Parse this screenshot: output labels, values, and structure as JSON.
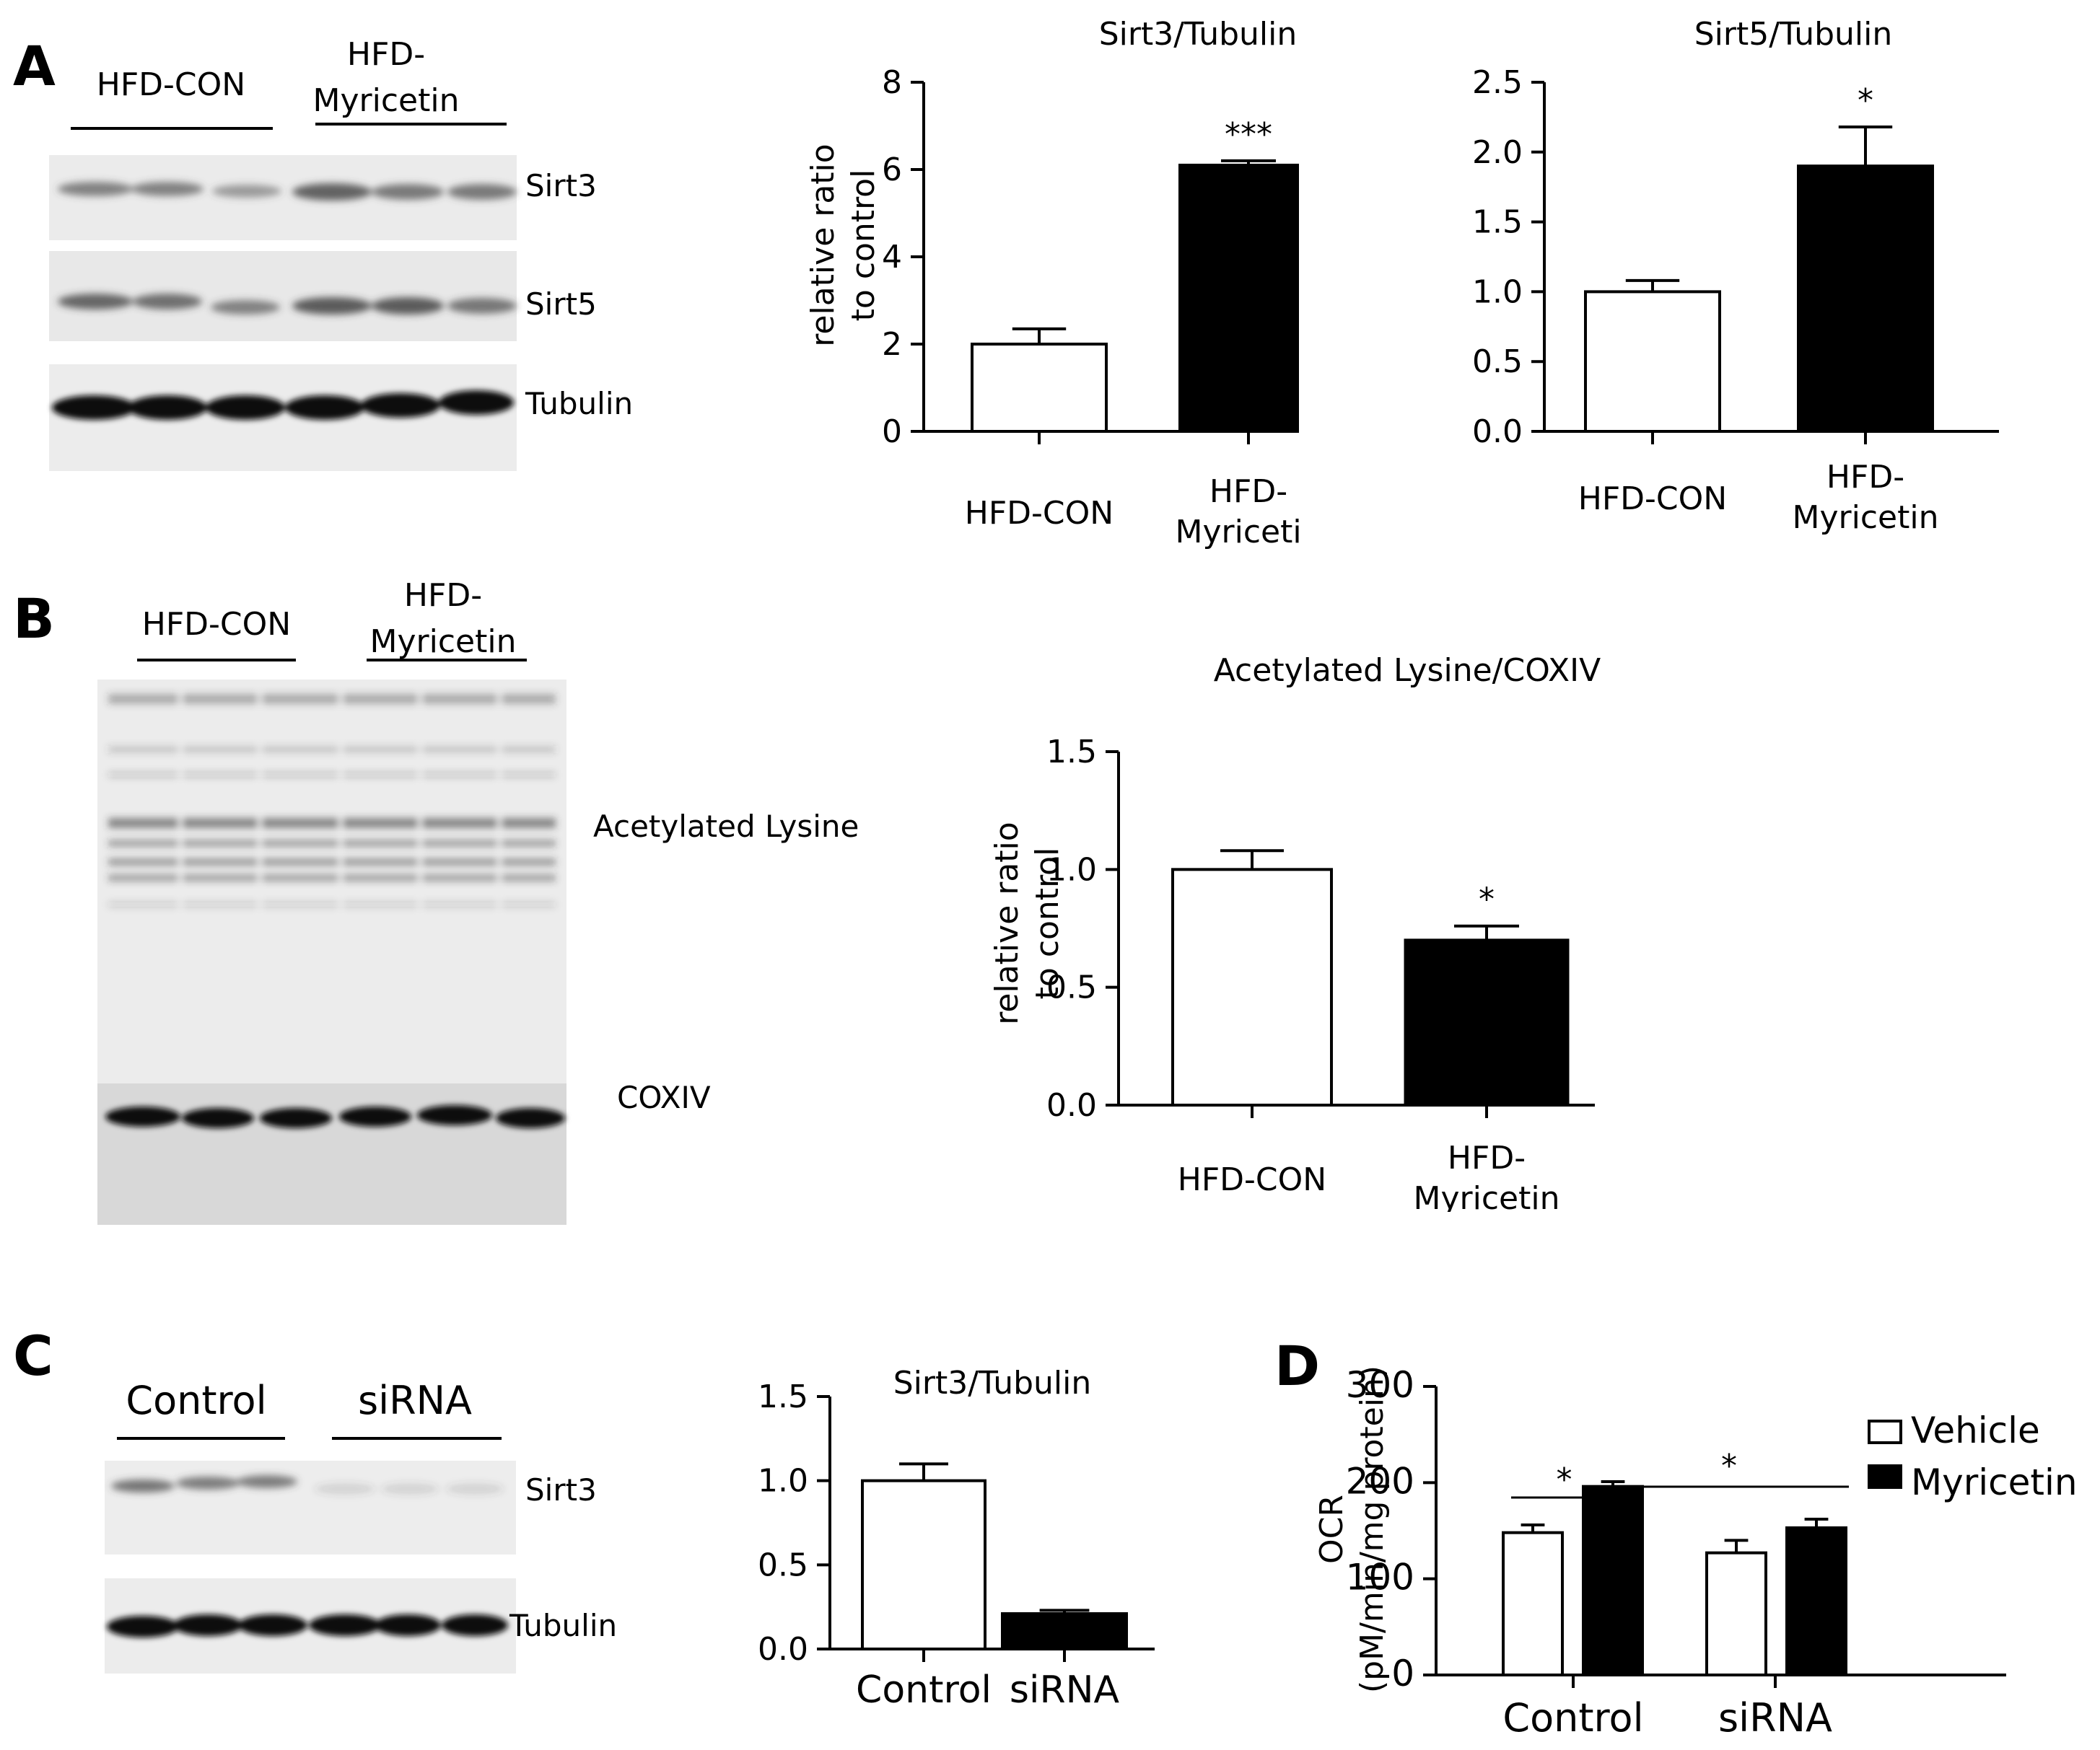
{
  "panels": {
    "A": {
      "letter": "A",
      "blot": {
        "groups": [
          "HFD-CON",
          "HFD-\nMyricetin"
        ],
        "bands": [
          "Sirt3",
          "Sirt5",
          "Tubulin"
        ]
      },
      "charts": [
        "sirt3_tub",
        "sirt5_tub"
      ]
    },
    "B": {
      "letter": "B",
      "blot": {
        "groups": [
          "HFD-CON",
          "HFD-\nMyricetin"
        ],
        "bands": [
          "Acetylated Lysine",
          "COXIV"
        ]
      },
      "charts": [
        "acl_cox"
      ]
    },
    "C": {
      "letter": "C",
      "blot": {
        "groups": [
          "Control",
          "siRNA"
        ],
        "bands": [
          "Sirt3",
          "Tubulin"
        ]
      },
      "charts": [
        "c_sirt3"
      ]
    },
    "D": {
      "letter": "D",
      "charts": [
        "d_ocr"
      ]
    }
  },
  "colors": {
    "open_bar": "#ffffff",
    "filled_bar": "#000000",
    "axis": "#000000"
  },
  "chart_data": [
    {
      "id": "sirt3_tub",
      "type": "bar",
      "title": "Sirt3/Tubulin",
      "ylabel": "relative ratio\nto control",
      "categories": [
        "HFD-CON",
        "HFD-\nMyricetin"
      ],
      "values": [
        2.0,
        6.1
      ],
      "errors": [
        0.35,
        0.1
      ],
      "fills": [
        "open",
        "filled"
      ],
      "ylim": [
        0,
        8
      ],
      "yticks": [
        "0",
        "2",
        "4",
        "6",
        "8"
      ],
      "annotations": [
        "",
        "***"
      ]
    },
    {
      "id": "sirt5_tub",
      "type": "bar",
      "title": "Sirt5/Tubulin",
      "ylabel": "",
      "categories": [
        "HFD-CON",
        "HFD-\nMyricetin"
      ],
      "values": [
        1.0,
        1.9
      ],
      "errors": [
        0.08,
        0.28
      ],
      "fills": [
        "open",
        "filled"
      ],
      "ylim": [
        0,
        2.5
      ],
      "yticks": [
        "0.0",
        "0.5",
        "1.0",
        "1.5",
        "2.0",
        "2.5"
      ],
      "annotations": [
        "",
        "*"
      ]
    },
    {
      "id": "acl_cox",
      "type": "bar",
      "title": "Acetylated Lysine/COXIV",
      "ylabel": "relative ratio\nto control",
      "categories": [
        "HFD-CON",
        "HFD-\nMyricetin"
      ],
      "values": [
        1.0,
        0.7
      ],
      "errors": [
        0.08,
        0.06
      ],
      "fills": [
        "open",
        "filled"
      ],
      "ylim": [
        0,
        1.5
      ],
      "yticks": [
        "0.0",
        "0.5",
        "1.0",
        "1.5"
      ],
      "annotations": [
        "",
        "*"
      ]
    },
    {
      "id": "c_sirt3",
      "type": "bar",
      "title": "Sirt3/Tubulin",
      "ylabel": "",
      "categories": [
        "Control",
        "siRNA"
      ],
      "values": [
        1.0,
        0.21
      ],
      "errors": [
        0.1,
        0.02
      ],
      "fills": [
        "open",
        "filled"
      ],
      "ylim": [
        0,
        1.5
      ],
      "yticks": [
        "0.0",
        "0.5",
        "1.0",
        "1.5"
      ],
      "annotations": [
        "",
        ""
      ]
    },
    {
      "id": "d_ocr",
      "type": "bar",
      "title": "",
      "ylabel": "OCR\n(pM/min/mg protein)",
      "categories": [
        "Control",
        "siRNA"
      ],
      "series": [
        {
          "name": "Vehicle",
          "values": [
            148,
            127
          ],
          "errors": [
            8,
            13
          ],
          "fill": "open"
        },
        {
          "name": "Myricetin",
          "values": [
            196,
            153
          ],
          "errors": [
            5,
            9
          ],
          "fill": "filled"
        }
      ],
      "ylim": [
        0,
        300
      ],
      "yticks": [
        "0",
        "100",
        "200",
        "300"
      ],
      "legend": "top-right",
      "significance": [
        "*",
        "*"
      ]
    }
  ]
}
